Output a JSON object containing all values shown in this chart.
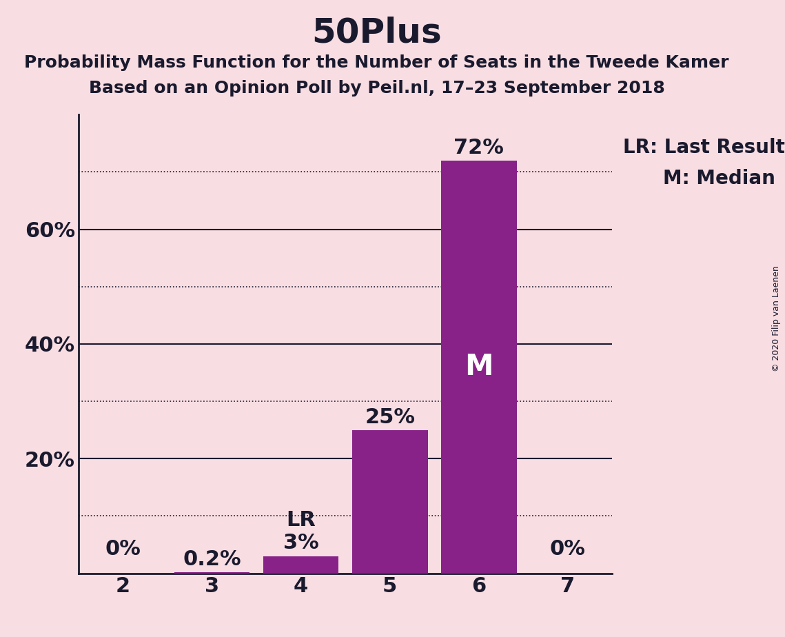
{
  "title": "50Plus",
  "subtitle1": "Probability Mass Function for the Number of Seats in the Tweede Kamer",
  "subtitle2": "Based on an Opinion Poll by Peil.nl, 17–23 September 2018",
  "copyright": "© 2020 Filip van Laenen",
  "categories": [
    2,
    3,
    4,
    5,
    6,
    7
  ],
  "values": [
    0.0,
    0.2,
    3.0,
    25.0,
    72.0,
    0.0
  ],
  "bar_color": "#882288",
  "background_color": "#f8dde2",
  "last_result_seat": 4,
  "median_seat": 6,
  "solid_lines": [
    20,
    40,
    60
  ],
  "dotted_lines": [
    10,
    30,
    50,
    70
  ],
  "ylim": [
    0,
    80
  ],
  "bar_labels": [
    "0%",
    "0.2%",
    "3%",
    "25%",
    "72%",
    "0%"
  ],
  "lr_label": "LR",
  "m_label": "M",
  "legend_lr": "LR: Last Result",
  "legend_m": "M: Median",
  "title_fontsize": 36,
  "subtitle_fontsize": 18,
  "tick_fontsize": 22,
  "bar_label_fontsize": 22,
  "legend_fontsize": 20,
  "copyright_fontsize": 9,
  "text_color": "#1a1a2e"
}
